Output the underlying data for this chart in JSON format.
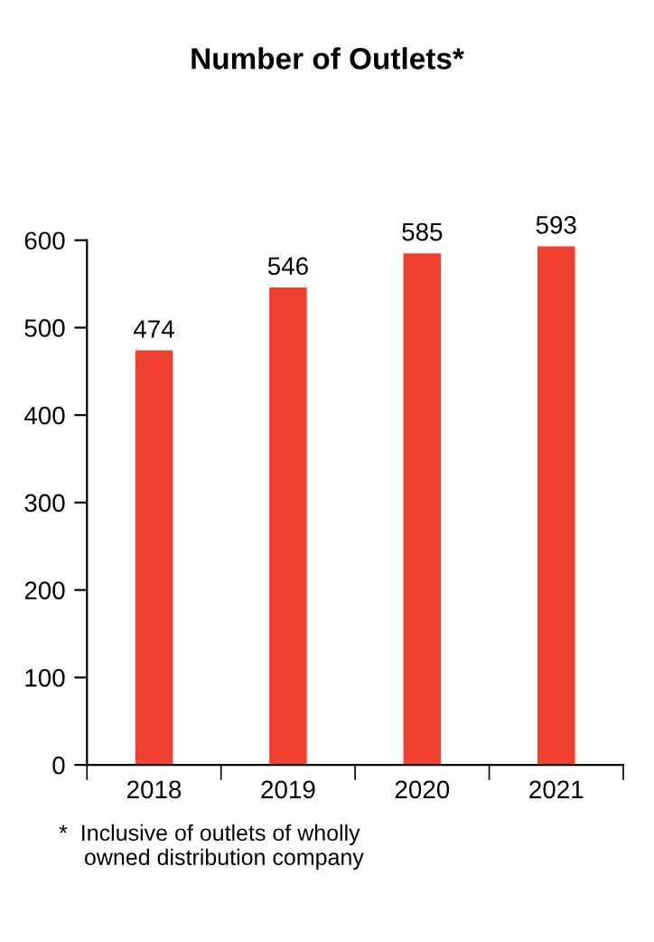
{
  "chart_data": {
    "type": "bar",
    "title": "Number of Outlets*",
    "categories": [
      "2018",
      "2019",
      "2020",
      "2021"
    ],
    "values": [
      474,
      546,
      585,
      593
    ],
    "color": "#f04030",
    "ylim": [
      0,
      600
    ],
    "yticks": [
      0,
      100,
      200,
      300,
      400,
      500,
      600
    ],
    "data_labels": true,
    "grid": false,
    "legend": false,
    "annotations": [
      "*  Inclusive of outlets of wholly\n    owned distribution company"
    ]
  }
}
